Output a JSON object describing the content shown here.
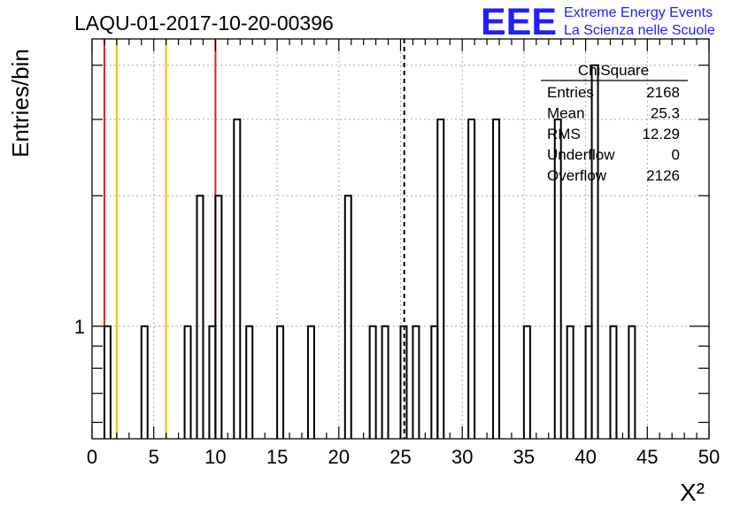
{
  "chart_data": {
    "type": "bar",
    "histogram_style": "step",
    "title": "LAQU-01-2017-10-20-00396",
    "xlabel": "X²",
    "ylabel": "Entries/bin",
    "xlim": [
      0,
      50
    ],
    "ylim": [
      0.55,
      4.6
    ],
    "y_scale": "log",
    "grid": true,
    "x_ticks": [
      "0",
      "5",
      "10",
      "15",
      "20",
      "25",
      "30",
      "35",
      "40",
      "45",
      "50"
    ],
    "y_ticks": [
      "1"
    ],
    "bin_width": 0.5,
    "x": [
      1.0,
      4.0,
      7.5,
      8.5,
      9.5,
      10.0,
      11.5,
      12.5,
      15.0,
      17.5,
      20.5,
      22.5,
      23.5,
      25.0,
      26.0,
      27.5,
      28.0,
      30.5,
      32.5,
      35.0,
      37.5,
      38.5,
      40.0,
      40.5,
      42.0,
      43.5
    ],
    "values": [
      1,
      1,
      1,
      2,
      1,
      2,
      3,
      1,
      1,
      1,
      2,
      1,
      1,
      1,
      1,
      1,
      3,
      3,
      3,
      1,
      3,
      1,
      1,
      4,
      1,
      1
    ],
    "vertical_lines": [
      {
        "x": 1,
        "color": "#dd2222"
      },
      {
        "x": 2,
        "color": "#f2bf00"
      },
      {
        "x": 6,
        "color": "#f2bf00"
      },
      {
        "x": 10,
        "color": "#dd2222"
      },
      {
        "x": 25.3,
        "color": "#000000",
        "style": "dashed"
      }
    ],
    "stats_box": {
      "title": "ChiSquare",
      "rows": [
        {
          "label": "Entries",
          "value": "2168"
        },
        {
          "label": "Mean",
          "value": "25.3"
        },
        {
          "label": "RMS",
          "value": "12.29"
        },
        {
          "label": "Underflow",
          "value": "0"
        },
        {
          "label": "Overflow",
          "value": "2126"
        }
      ]
    }
  },
  "logo": {
    "mark": "EEE",
    "line1": "Extreme Energy Events",
    "line2": "La Scienza nelle Scuole",
    "color": "#1f1fff"
  }
}
